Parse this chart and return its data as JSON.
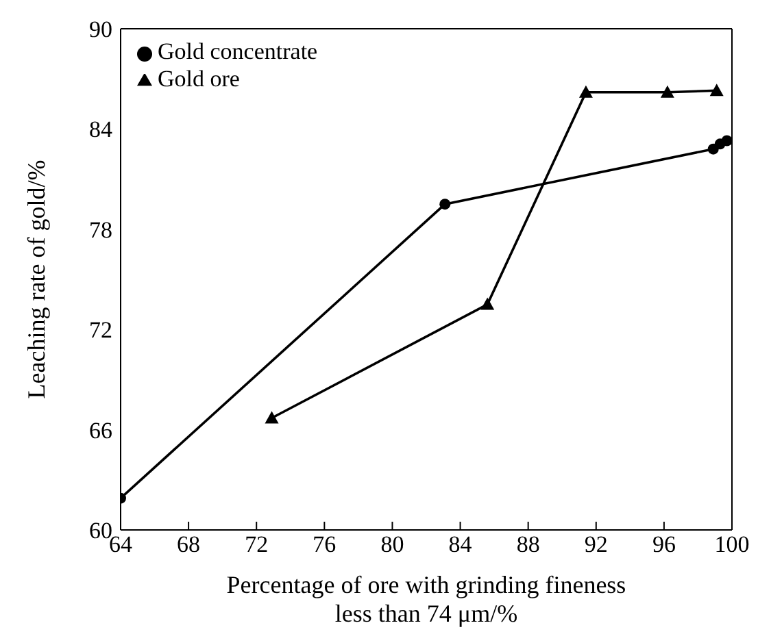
{
  "chart_data": {
    "type": "line",
    "xlabel": "Percentage of ore with grinding fineness\nless than 74 μm/%",
    "ylabel": "Leaching rate of gold/%",
    "xlim": [
      64,
      100
    ],
    "xticks": [
      64,
      68,
      72,
      76,
      80,
      84,
      88,
      92,
      96,
      100
    ],
    "ylim": [
      60,
      90
    ],
    "yticks": [
      60,
      66,
      72,
      78,
      84,
      90
    ],
    "grid": false,
    "legend": "top left",
    "line_style": "solid",
    "series": [
      {
        "name": "Gold ore",
        "color": "#000000",
        "marker": "triangle",
        "x": [
          72.9,
          85.6,
          91.4,
          96.2,
          99.1
        ],
        "values": [
          66.7,
          73.5,
          86.2,
          86.2,
          86.3
        ]
      },
      {
        "name": "Gold concentrate",
        "color": "#000000",
        "marker": "circle",
        "x": [
          64,
          83.1,
          98.9,
          99.3,
          99.7
        ],
        "values": [
          61.9,
          79.5,
          82.8,
          83.1,
          83.3
        ]
      }
    ]
  }
}
